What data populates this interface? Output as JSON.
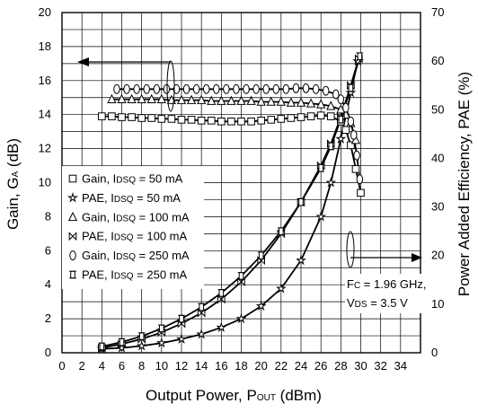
{
  "chart_data": {
    "type": "line",
    "xlabel": {
      "main": "Output Power, P",
      "sub": "OUT",
      "unit": " (dBm)"
    },
    "ylabel_left": {
      "main": "Gain, G",
      "sub": "A",
      "unit": " (dB)"
    },
    "ylabel_right": "Power Added Efficiency, PAE (%)",
    "xlim": [
      0,
      36
    ],
    "ylim_left": [
      0,
      20
    ],
    "ylim_right": [
      0,
      70
    ],
    "x_ticks": [
      0,
      2,
      4,
      6,
      8,
      10,
      12,
      14,
      16,
      18,
      20,
      22,
      24,
      26,
      28,
      30,
      32,
      34
    ],
    "y_left_ticks": [
      0,
      2,
      4,
      6,
      8,
      10,
      12,
      14,
      16,
      18,
      20
    ],
    "y_right_ticks": [
      0,
      10,
      20,
      30,
      40,
      50,
      60,
      70
    ],
    "grid": true,
    "legend_position": "left-middle",
    "annotation": {
      "line1": {
        "pre": "F",
        "sub": "C",
        "post": " = 1.96 GHz,"
      },
      "line2": {
        "pre": "V",
        "sub": "DS",
        "post": " = 3.5 V"
      }
    },
    "series": [
      {
        "name": {
          "pre": "Gain, I",
          "sub": "DSQ",
          "post": " = 50 mA"
        },
        "axis": "left",
        "marker": "square",
        "x": [
          4,
          5,
          6,
          7,
          8,
          9,
          10,
          11,
          12,
          13,
          14,
          15,
          16,
          17,
          18,
          19,
          20,
          21,
          22,
          23,
          24,
          25,
          26,
          27,
          28,
          28.5,
          29,
          29.5,
          30
        ],
        "y": [
          13.9,
          13.9,
          13.85,
          13.85,
          13.8,
          13.8,
          13.75,
          13.75,
          13.7,
          13.7,
          13.65,
          13.65,
          13.6,
          13.6,
          13.6,
          13.6,
          13.65,
          13.7,
          13.75,
          13.8,
          13.85,
          13.9,
          13.95,
          13.9,
          13.6,
          13.1,
          12.2,
          10.8,
          9.4
        ]
      },
      {
        "name": {
          "pre": "PAE, I",
          "sub": "DSQ",
          "post": " = 50 mA"
        },
        "axis": "right",
        "marker": "star",
        "x": [
          4,
          6,
          8,
          10,
          12,
          14,
          16,
          18,
          20,
          22,
          24,
          26,
          27,
          28,
          29,
          29.7
        ],
        "y": [
          0.8,
          1.0,
          1.4,
          2.0,
          2.8,
          3.8,
          5.2,
          7.0,
          9.6,
          13.2,
          19.0,
          28.0,
          35.0,
          44.0,
          53.5,
          60.0
        ]
      },
      {
        "name": {
          "pre": "Gain, I",
          "sub": "DSQ",
          "post": " = 100 mA"
        },
        "axis": "left",
        "marker": "triangle",
        "x": [
          5,
          6,
          7,
          8,
          9,
          10,
          11,
          12,
          13,
          14,
          15,
          16,
          17,
          18,
          19,
          20,
          21,
          22,
          23,
          24,
          25,
          26,
          27,
          28,
          28.5,
          29,
          29.5
        ],
        "y": [
          14.9,
          14.9,
          14.9,
          14.9,
          14.9,
          14.9,
          14.85,
          14.85,
          14.85,
          14.85,
          14.8,
          14.8,
          14.8,
          14.8,
          14.8,
          14.75,
          14.75,
          14.75,
          14.7,
          14.7,
          14.65,
          14.6,
          14.5,
          14.3,
          14.0,
          13.5,
          12.5
        ]
      },
      {
        "name": {
          "pre": "PAE, I",
          "sub": "DSQ",
          "post": " = 100 mA"
        },
        "axis": "right",
        "marker": "bowtie",
        "x": [
          4,
          6,
          8,
          10,
          12,
          14,
          16,
          18,
          20,
          22,
          24,
          26,
          27,
          28,
          29,
          29.8
        ],
        "y": [
          1.0,
          1.8,
          2.8,
          4.2,
          6.0,
          8.2,
          11.0,
          14.6,
          19.0,
          24.5,
          31.0,
          38.5,
          43.0,
          48.5,
          55.0,
          60.5
        ]
      },
      {
        "name": {
          "pre": "Gain, I",
          "sub": "DSQ",
          "post": " = 250 mA"
        },
        "axis": "left",
        "marker": "circle",
        "x": [
          5.5,
          6.5,
          7.5,
          8.5,
          9.5,
          10.5,
          11.5,
          12.5,
          13.5,
          14.5,
          15.5,
          16.5,
          17.5,
          18.5,
          19.5,
          20.5,
          21.5,
          22.5,
          23.5,
          24.5,
          25.5,
          26.5,
          27.5,
          28,
          28.5,
          29,
          29.3,
          29.6,
          29.9
        ],
        "y": [
          15.5,
          15.5,
          15.5,
          15.5,
          15.5,
          15.5,
          15.5,
          15.5,
          15.5,
          15.5,
          15.5,
          15.5,
          15.5,
          15.5,
          15.5,
          15.5,
          15.5,
          15.5,
          15.55,
          15.55,
          15.5,
          15.4,
          15.2,
          14.9,
          14.4,
          13.6,
          12.8,
          11.6,
          10.2
        ]
      },
      {
        "name": {
          "pre": "PAE, I",
          "sub": "DSQ",
          "post": " = 250 mA"
        },
        "axis": "right",
        "marker": "bracket",
        "x": [
          4,
          6,
          8,
          10,
          12,
          14,
          16,
          18,
          20,
          22,
          24,
          26,
          27,
          28,
          29,
          29.9
        ],
        "y": [
          1.3,
          2.2,
          3.4,
          5.0,
          7.0,
          9.4,
          12.3,
          15.8,
          20.0,
          25.0,
          31.0,
          38.0,
          42.5,
          48.0,
          54.5,
          61.0
        ]
      }
    ]
  }
}
